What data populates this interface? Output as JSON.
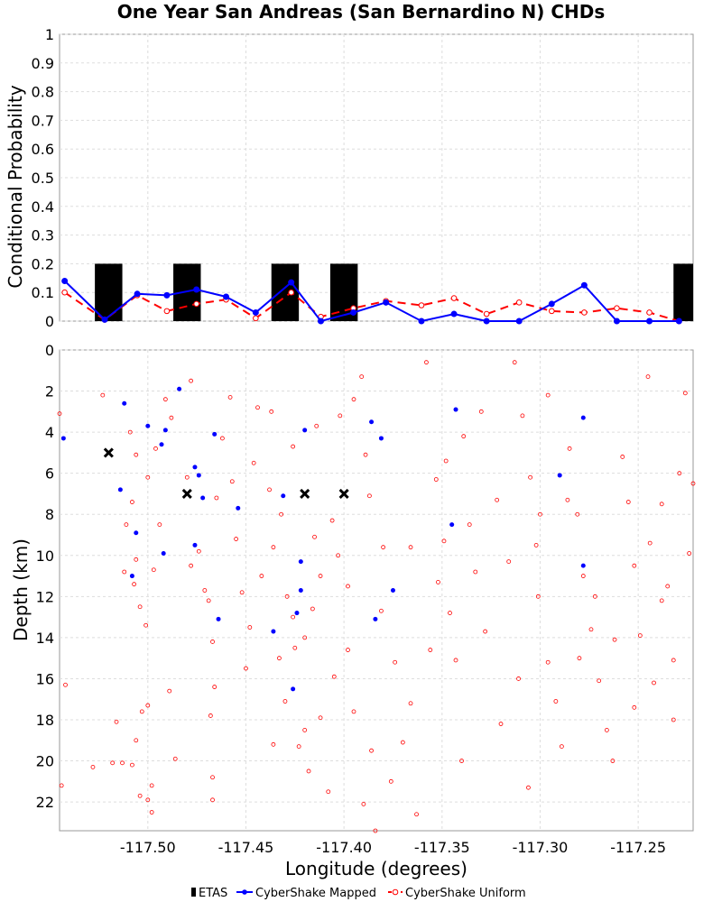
{
  "chart_data": [
    {
      "type": "line",
      "title": "One Year San Andreas (San Bernardino N) CHDs",
      "xlabel": "",
      "ylabel": "Conditional Probability",
      "xlim": [
        -117.545,
        -117.222
      ],
      "ylim": [
        0,
        1
      ],
      "y_ticks": [
        "0",
        "0.1",
        "0.2",
        "0.3",
        "0.4",
        "0.5",
        "0.6",
        "0.7",
        "0.8",
        "0.9",
        "1"
      ],
      "grid": true,
      "bars": {
        "name": "ETAS",
        "color": "#000000",
        "width": 0.014,
        "x": [
          -117.52,
          -117.48,
          -117.43,
          -117.4,
          -117.225
        ],
        "values": [
          0.2,
          0.2,
          0.2,
          0.2,
          0.2
        ]
      },
      "series": [
        {
          "name": "CyberShake Mapped",
          "color": "#0000ff",
          "x": [
            -117.5424,
            -117.522,
            -117.5054,
            -117.4903,
            -117.4752,
            -117.4601,
            -117.445,
            -117.4269,
            -117.4118,
            -117.3952,
            -117.3786,
            -117.3605,
            -117.3439,
            -117.3273,
            -117.3107,
            -117.2941,
            -117.2775,
            -117.2609,
            -117.2443,
            -117.2292
          ],
          "values": [
            0.14,
            0.005,
            0.095,
            0.09,
            0.11,
            0.085,
            0.03,
            0.135,
            0.0,
            0.03,
            0.065,
            0.0,
            0.025,
            0.0,
            0.0,
            0.06,
            0.125,
            0.0,
            0.0,
            0.0
          ]
        },
        {
          "name": "CyberShake Uniform",
          "color": "#ff0000",
          "x": [
            -117.5424,
            -117.522,
            -117.5054,
            -117.4903,
            -117.4752,
            -117.4601,
            -117.445,
            -117.4269,
            -117.4118,
            -117.3952,
            -117.3786,
            -117.3605,
            -117.3439,
            -117.3273,
            -117.3107,
            -117.2941,
            -117.2775,
            -117.2609,
            -117.2443,
            -117.2292
          ],
          "values": [
            0.1,
            0.005,
            0.09,
            0.035,
            0.06,
            0.075,
            0.01,
            0.1,
            0.015,
            0.045,
            0.07,
            0.055,
            0.08,
            0.025,
            0.065,
            0.035,
            0.03,
            0.045,
            0.03,
            0.0
          ]
        }
      ]
    },
    {
      "type": "scatter",
      "xlabel": "Longitude (degrees)",
      "ylabel": "Depth (km)",
      "xlim": [
        -117.545,
        -117.222
      ],
      "ylim": [
        23.4,
        0
      ],
      "x_ticks": [
        "-117.50",
        "-117.45",
        "-117.40",
        "-117.35",
        "-117.30",
        "-117.25"
      ],
      "y_ticks": [
        "0",
        "2",
        "4",
        "6",
        "8",
        "10",
        "12",
        "14",
        "16",
        "18",
        "20",
        "22"
      ],
      "grid": true,
      "series": [
        {
          "name": "ETAS",
          "marker": "x",
          "color": "#000000",
          "points": [
            [
              -117.52,
              5.0
            ],
            [
              -117.48,
              7.0
            ],
            [
              -117.42,
              7.0
            ],
            [
              -117.4,
              7.0
            ]
          ]
        },
        {
          "name": "CyberShake Mapped",
          "marker": "dot",
          "color": "#0000ff",
          "points": [
            [
              -117.484,
              1.9
            ],
            [
              -117.512,
              2.6
            ],
            [
              -117.543,
              4.3
            ],
            [
              -117.5,
              3.7
            ],
            [
              -117.491,
              3.9
            ],
            [
              -117.493,
              4.6
            ],
            [
              -117.466,
              4.1
            ],
            [
              -117.476,
              5.7
            ],
            [
              -117.474,
              6.1
            ],
            [
              -117.514,
              6.8
            ],
            [
              -117.472,
              7.2
            ],
            [
              -117.431,
              7.1
            ],
            [
              -117.454,
              7.7
            ],
            [
              -117.506,
              8.9
            ],
            [
              -117.492,
              9.9
            ],
            [
              -117.476,
              9.5
            ],
            [
              -117.508,
              11.0
            ],
            [
              -117.547,
              11.9
            ],
            [
              -117.422,
              10.3
            ],
            [
              -117.422,
              11.7
            ],
            [
              -117.424,
              12.8
            ],
            [
              -117.42,
              3.9
            ],
            [
              -117.386,
              3.5
            ],
            [
              -117.381,
              4.3
            ],
            [
              -117.375,
              11.7
            ],
            [
              -117.384,
              13.1
            ],
            [
              -117.343,
              2.9
            ],
            [
              -117.345,
              8.5
            ],
            [
              -117.29,
              6.1
            ],
            [
              -117.278,
              3.3
            ],
            [
              -117.278,
              10.5
            ],
            [
              -117.426,
              16.5
            ],
            [
              -117.464,
              13.1
            ],
            [
              -117.436,
              13.7
            ]
          ]
        },
        {
          "name": "CyberShake Uniform",
          "marker": "circle",
          "color": "#ff0000",
          "points": [
            [
              -117.545,
              3.1
            ],
            [
              -117.542,
              16.3
            ],
            [
              -117.544,
              21.2
            ],
            [
              -117.523,
              2.2
            ],
            [
              -117.528,
              20.3
            ],
            [
              -117.518,
              20.1
            ],
            [
              -117.513,
              20.1
            ],
            [
              -117.508,
              20.2
            ],
            [
              -117.512,
              10.8
            ],
            [
              -117.516,
              18.1
            ],
            [
              -117.506,
              19.0
            ],
            [
              -117.507,
              11.4
            ],
            [
              -117.511,
              8.5
            ],
            [
              -117.504,
              12.5
            ],
            [
              -117.501,
              13.4
            ],
            [
              -117.503,
              17.6
            ],
            [
              -117.5,
              17.3
            ],
            [
              -117.498,
              21.2
            ],
            [
              -117.5,
              21.9
            ],
            [
              -117.498,
              22.5
            ],
            [
              -117.504,
              21.7
            ],
            [
              -117.496,
              4.8
            ],
            [
              -117.491,
              2.4
            ],
            [
              -117.488,
              3.3
            ],
            [
              -117.494,
              8.5
            ],
            [
              -117.497,
              10.7
            ],
            [
              -117.489,
              16.6
            ],
            [
              -117.486,
              19.9
            ],
            [
              -117.5,
              6.2
            ],
            [
              -117.509,
              4.0
            ],
            [
              -117.506,
              5.1
            ],
            [
              -117.508,
              7.4
            ],
            [
              -117.506,
              10.2
            ],
            [
              -117.478,
              10.5
            ],
            [
              -117.48,
              6.2
            ],
            [
              -117.474,
              9.8
            ],
            [
              -117.471,
              11.7
            ],
            [
              -117.469,
              12.2
            ],
            [
              -117.467,
              14.2
            ],
            [
              -117.466,
              16.4
            ],
            [
              -117.468,
              17.8
            ],
            [
              -117.467,
              20.8
            ],
            [
              -117.467,
              21.9
            ],
            [
              -117.462,
              4.3
            ],
            [
              -117.457,
              6.4
            ],
            [
              -117.452,
              11.8
            ],
            [
              -117.45,
              15.5
            ],
            [
              -117.444,
              2.8
            ],
            [
              -117.437,
              3.0
            ],
            [
              -117.438,
              6.8
            ],
            [
              -117.432,
              8.0
            ],
            [
              -117.429,
              12.0
            ],
            [
              -117.426,
              13.0
            ],
            [
              -117.42,
              14.0
            ],
            [
              -117.425,
              14.5
            ],
            [
              -117.42,
              18.5
            ],
            [
              -117.423,
              19.3
            ],
            [
              -117.418,
              20.5
            ],
            [
              -117.412,
              17.9
            ],
            [
              -117.408,
              21.5
            ],
            [
              -117.403,
              10.0
            ],
            [
              -117.398,
              11.5
            ],
            [
              -117.398,
              14.6
            ],
            [
              -117.402,
              3.2
            ],
            [
              -117.395,
              2.4
            ],
            [
              -117.391,
              1.3
            ],
            [
              -117.389,
              5.1
            ],
            [
              -117.387,
              7.1
            ],
            [
              -117.38,
              9.6
            ],
            [
              -117.381,
              12.7
            ],
            [
              -117.374,
              15.2
            ],
            [
              -117.37,
              19.1
            ],
            [
              -117.363,
              22.6
            ],
            [
              -117.358,
              0.6
            ],
            [
              -117.353,
              6.3
            ],
            [
              -117.349,
              9.3
            ],
            [
              -117.346,
              12.8
            ],
            [
              -117.343,
              15.1
            ],
            [
              -117.339,
              4.2
            ],
            [
              -117.336,
              8.5
            ],
            [
              -117.333,
              10.8
            ],
            [
              -117.328,
              13.7
            ],
            [
              -117.32,
              18.2
            ],
            [
              -117.313,
              0.6
            ],
            [
              -117.309,
              3.2
            ],
            [
              -117.305,
              6.2
            ],
            [
              -117.302,
              9.5
            ],
            [
              -117.301,
              12.0
            ],
            [
              -117.296,
              15.2
            ],
            [
              -117.292,
              17.1
            ],
            [
              -117.289,
              19.3
            ],
            [
              -117.285,
              4.8
            ],
            [
              -117.281,
              8.0
            ],
            [
              -117.278,
              11.0
            ],
            [
              -117.274,
              13.6
            ],
            [
              -117.27,
              16.1
            ],
            [
              -117.266,
              18.5
            ],
            [
              -117.263,
              20.0
            ],
            [
              -117.258,
              5.2
            ],
            [
              -117.255,
              7.4
            ],
            [
              -117.252,
              10.5
            ],
            [
              -117.249,
              13.9
            ],
            [
              -117.245,
              1.3
            ],
            [
              -117.242,
              16.2
            ],
            [
              -117.238,
              7.5
            ],
            [
              -117.235,
              11.5
            ],
            [
              -117.232,
              15.1
            ],
            [
              -117.229,
              6.0
            ],
            [
              -117.226,
              2.1
            ],
            [
              -117.224,
              9.9
            ],
            [
              -117.222,
              6.5
            ],
            [
              -117.465,
              7.2
            ],
            [
              -117.455,
              9.2
            ],
            [
              -117.442,
              11.0
            ],
            [
              -117.448,
              13.5
            ],
            [
              -117.433,
              15.0
            ],
            [
              -117.43,
              17.1
            ],
            [
              -117.436,
              19.2
            ],
            [
              -117.415,
              9.1
            ],
            [
              -117.412,
              11.0
            ],
            [
              -117.405,
              15.9
            ],
            [
              -117.395,
              17.6
            ],
            [
              -117.386,
              19.5
            ],
            [
              -117.376,
              21.0
            ],
            [
              -117.366,
              17.2
            ],
            [
              -117.356,
              14.6
            ],
            [
              -117.352,
              11.3
            ],
            [
              -117.348,
              5.4
            ],
            [
              -117.322,
              7.3
            ],
            [
              -117.316,
              10.3
            ],
            [
              -117.311,
              16.0
            ],
            [
              -117.306,
              21.3
            ],
            [
              -117.296,
              2.2
            ],
            [
              -117.286,
              7.3
            ],
            [
              -117.272,
              12.0
            ],
            [
              -117.262,
              14.1
            ],
            [
              -117.252,
              17.4
            ],
            [
              -117.244,
              9.4
            ],
            [
              -117.238,
              12.2
            ],
            [
              -117.232,
              18.0
            ],
            [
              -117.39,
              22.1
            ],
            [
              -117.384,
              23.4
            ],
            [
              -117.414,
              3.7
            ],
            [
              -117.426,
              4.7
            ],
            [
              -117.446,
              5.5
            ],
            [
              -117.406,
              8.3
            ],
            [
              -117.436,
              9.6
            ],
            [
              -117.478,
              1.5
            ],
            [
              -117.458,
              2.3
            ],
            [
              -117.416,
              12.6
            ],
            [
              -117.366,
              9.6
            ],
            [
              -117.34,
              20.0
            ],
            [
              -117.33,
              3.0
            ],
            [
              -117.3,
              8.0
            ],
            [
              -117.28,
              15.0
            ]
          ]
        }
      ]
    }
  ],
  "legend": [
    {
      "label": "ETAS",
      "marker": "bar",
      "color": "#000000"
    },
    {
      "label": "CyberShake Mapped",
      "marker": "dot-line",
      "color": "#0000ff"
    },
    {
      "label": "CyberShake Uniform",
      "marker": "circle-dash",
      "color": "#ff0000"
    }
  ]
}
